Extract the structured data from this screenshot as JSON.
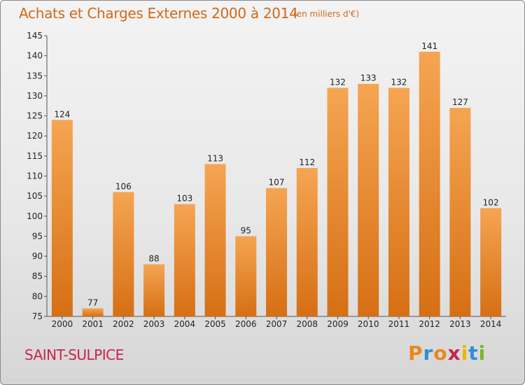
{
  "header": {
    "title": "Achats et Charges Externes 2000 à 2014",
    "subtitle": "(en milliers d'€)"
  },
  "footer": {
    "commune": "SAINT-SULPICE",
    "logo_text": "Proxiti",
    "logo_colors": [
      "#e8891c",
      "#2f8fd1",
      "#e8891c",
      "#c8244f",
      "#f0b400",
      "#2f8fd1",
      "#7ab82e"
    ]
  },
  "colors": {
    "bar_light": "#f5a552",
    "bar_dark": "#d66f14",
    "title": "#d0691a",
    "commune": "#c8244f"
  },
  "chart_data": {
    "type": "bar",
    "title": "Achats et Charges Externes 2000 à 2014",
    "subtitle": "(en milliers d'€)",
    "categories": [
      "2000",
      "2001",
      "2002",
      "2003",
      "2004",
      "2005",
      "2006",
      "2007",
      "2008",
      "2009",
      "2010",
      "2011",
      "2012",
      "2013",
      "2014"
    ],
    "values": [
      124,
      77,
      106,
      88,
      103,
      113,
      95,
      107,
      112,
      132,
      133,
      132,
      141,
      127,
      102
    ],
    "ylim": [
      75,
      145
    ],
    "yticks": [
      75,
      80,
      85,
      90,
      95,
      100,
      105,
      110,
      115,
      120,
      125,
      130,
      135,
      140,
      145
    ],
    "grid": false,
    "data_labels": true
  }
}
